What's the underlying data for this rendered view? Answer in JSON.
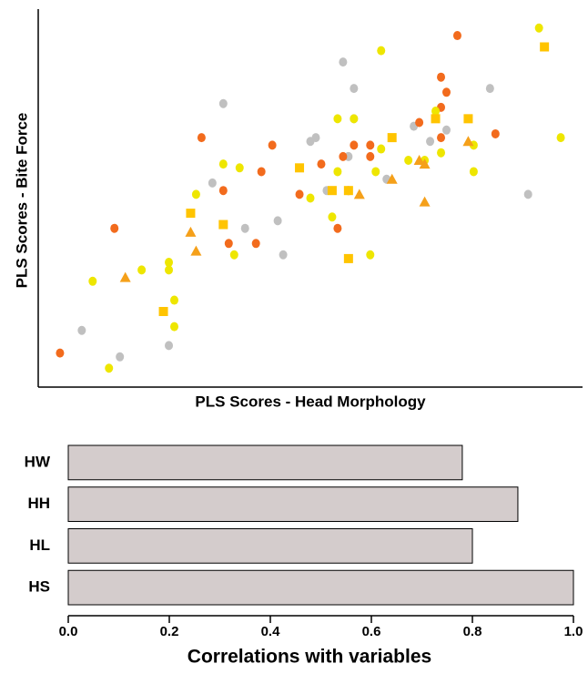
{
  "chart_data": [
    {
      "type": "scatter",
      "xlabel": "PLS Scores - Head Morphology",
      "ylabel": "PLS Scores - Bite Force",
      "xlim": [
        0,
        1
      ],
      "ylim": [
        0,
        1
      ],
      "series": [
        {
          "color": "#c0c0c0",
          "marker": "circle",
          "x": [
            0.08,
            0.15,
            0.24,
            0.34,
            0.32,
            0.38,
            0.44,
            0.45,
            0.5,
            0.51,
            0.53,
            0.56,
            0.58,
            0.58,
            0.57,
            0.64,
            0.69,
            0.72,
            0.75,
            0.83,
            0.9
          ],
          "y": [
            0.15,
            0.08,
            0.11,
            0.75,
            0.54,
            0.42,
            0.44,
            0.35,
            0.65,
            0.66,
            0.52,
            0.86,
            0.79,
            0.71,
            0.61,
            0.55,
            0.69,
            0.65,
            0.68,
            0.79,
            0.51
          ]
        },
        {
          "color": "#f26b1d",
          "marker": "circle",
          "x": [
            0.04,
            0.14,
            0.3,
            0.34,
            0.35,
            0.4,
            0.41,
            0.43,
            0.48,
            0.52,
            0.55,
            0.57,
            0.56,
            0.58,
            0.61,
            0.61,
            0.7,
            0.74,
            0.74,
            0.75,
            0.74,
            0.77,
            0.84
          ],
          "y": [
            0.09,
            0.42,
            0.66,
            0.52,
            0.38,
            0.38,
            0.57,
            0.64,
            0.51,
            0.59,
            0.42,
            0.52,
            0.61,
            0.64,
            0.64,
            0.61,
            0.7,
            0.82,
            0.74,
            0.78,
            0.66,
            0.93,
            0.67
          ]
        },
        {
          "color": "#eee600",
          "marker": "circle",
          "x": [
            0.1,
            0.13,
            0.19,
            0.24,
            0.24,
            0.25,
            0.25,
            0.29,
            0.34,
            0.36,
            0.37,
            0.5,
            0.54,
            0.55,
            0.55,
            0.58,
            0.61,
            0.62,
            0.63,
            0.63,
            0.68,
            0.71,
            0.73,
            0.74,
            0.8,
            0.8,
            0.92,
            0.96
          ],
          "y": [
            0.28,
            0.05,
            0.31,
            0.33,
            0.31,
            0.23,
            0.16,
            0.51,
            0.59,
            0.35,
            0.58,
            0.5,
            0.45,
            0.71,
            0.57,
            0.71,
            0.35,
            0.57,
            0.63,
            0.89,
            0.6,
            0.6,
            0.73,
            0.62,
            0.64,
            0.57,
            0.95,
            0.66
          ]
        },
        {
          "color": "#ffc400",
          "marker": "square",
          "x": [
            0.23,
            0.28,
            0.34,
            0.48,
            0.54,
            0.57,
            0.57,
            0.65,
            0.73,
            0.79,
            0.93
          ],
          "y": [
            0.2,
            0.46,
            0.43,
            0.58,
            0.52,
            0.34,
            0.52,
            0.66,
            0.71,
            0.71,
            0.9
          ]
        },
        {
          "color": "#f5a01a",
          "marker": "triangle",
          "x": [
            0.16,
            0.28,
            0.29,
            0.59,
            0.65,
            0.7,
            0.71,
            0.71,
            0.79
          ],
          "y": [
            0.29,
            0.41,
            0.36,
            0.51,
            0.55,
            0.6,
            0.59,
            0.49,
            0.65
          ]
        }
      ]
    },
    {
      "type": "barh",
      "xlabel": "Correlations with variables",
      "categories": [
        "HW",
        "HH",
        "HL",
        "HS"
      ],
      "values": [
        0.78,
        0.89,
        0.8,
        1.0
      ],
      "color": "#d4cccc",
      "xlim": [
        0,
        1
      ],
      "xticks": [
        {
          "value": 0,
          "label": "0.0"
        },
        0.2,
        0.4,
        0.6,
        0.8,
        {
          "value": 1,
          "label": "1.0"
        }
      ]
    }
  ]
}
